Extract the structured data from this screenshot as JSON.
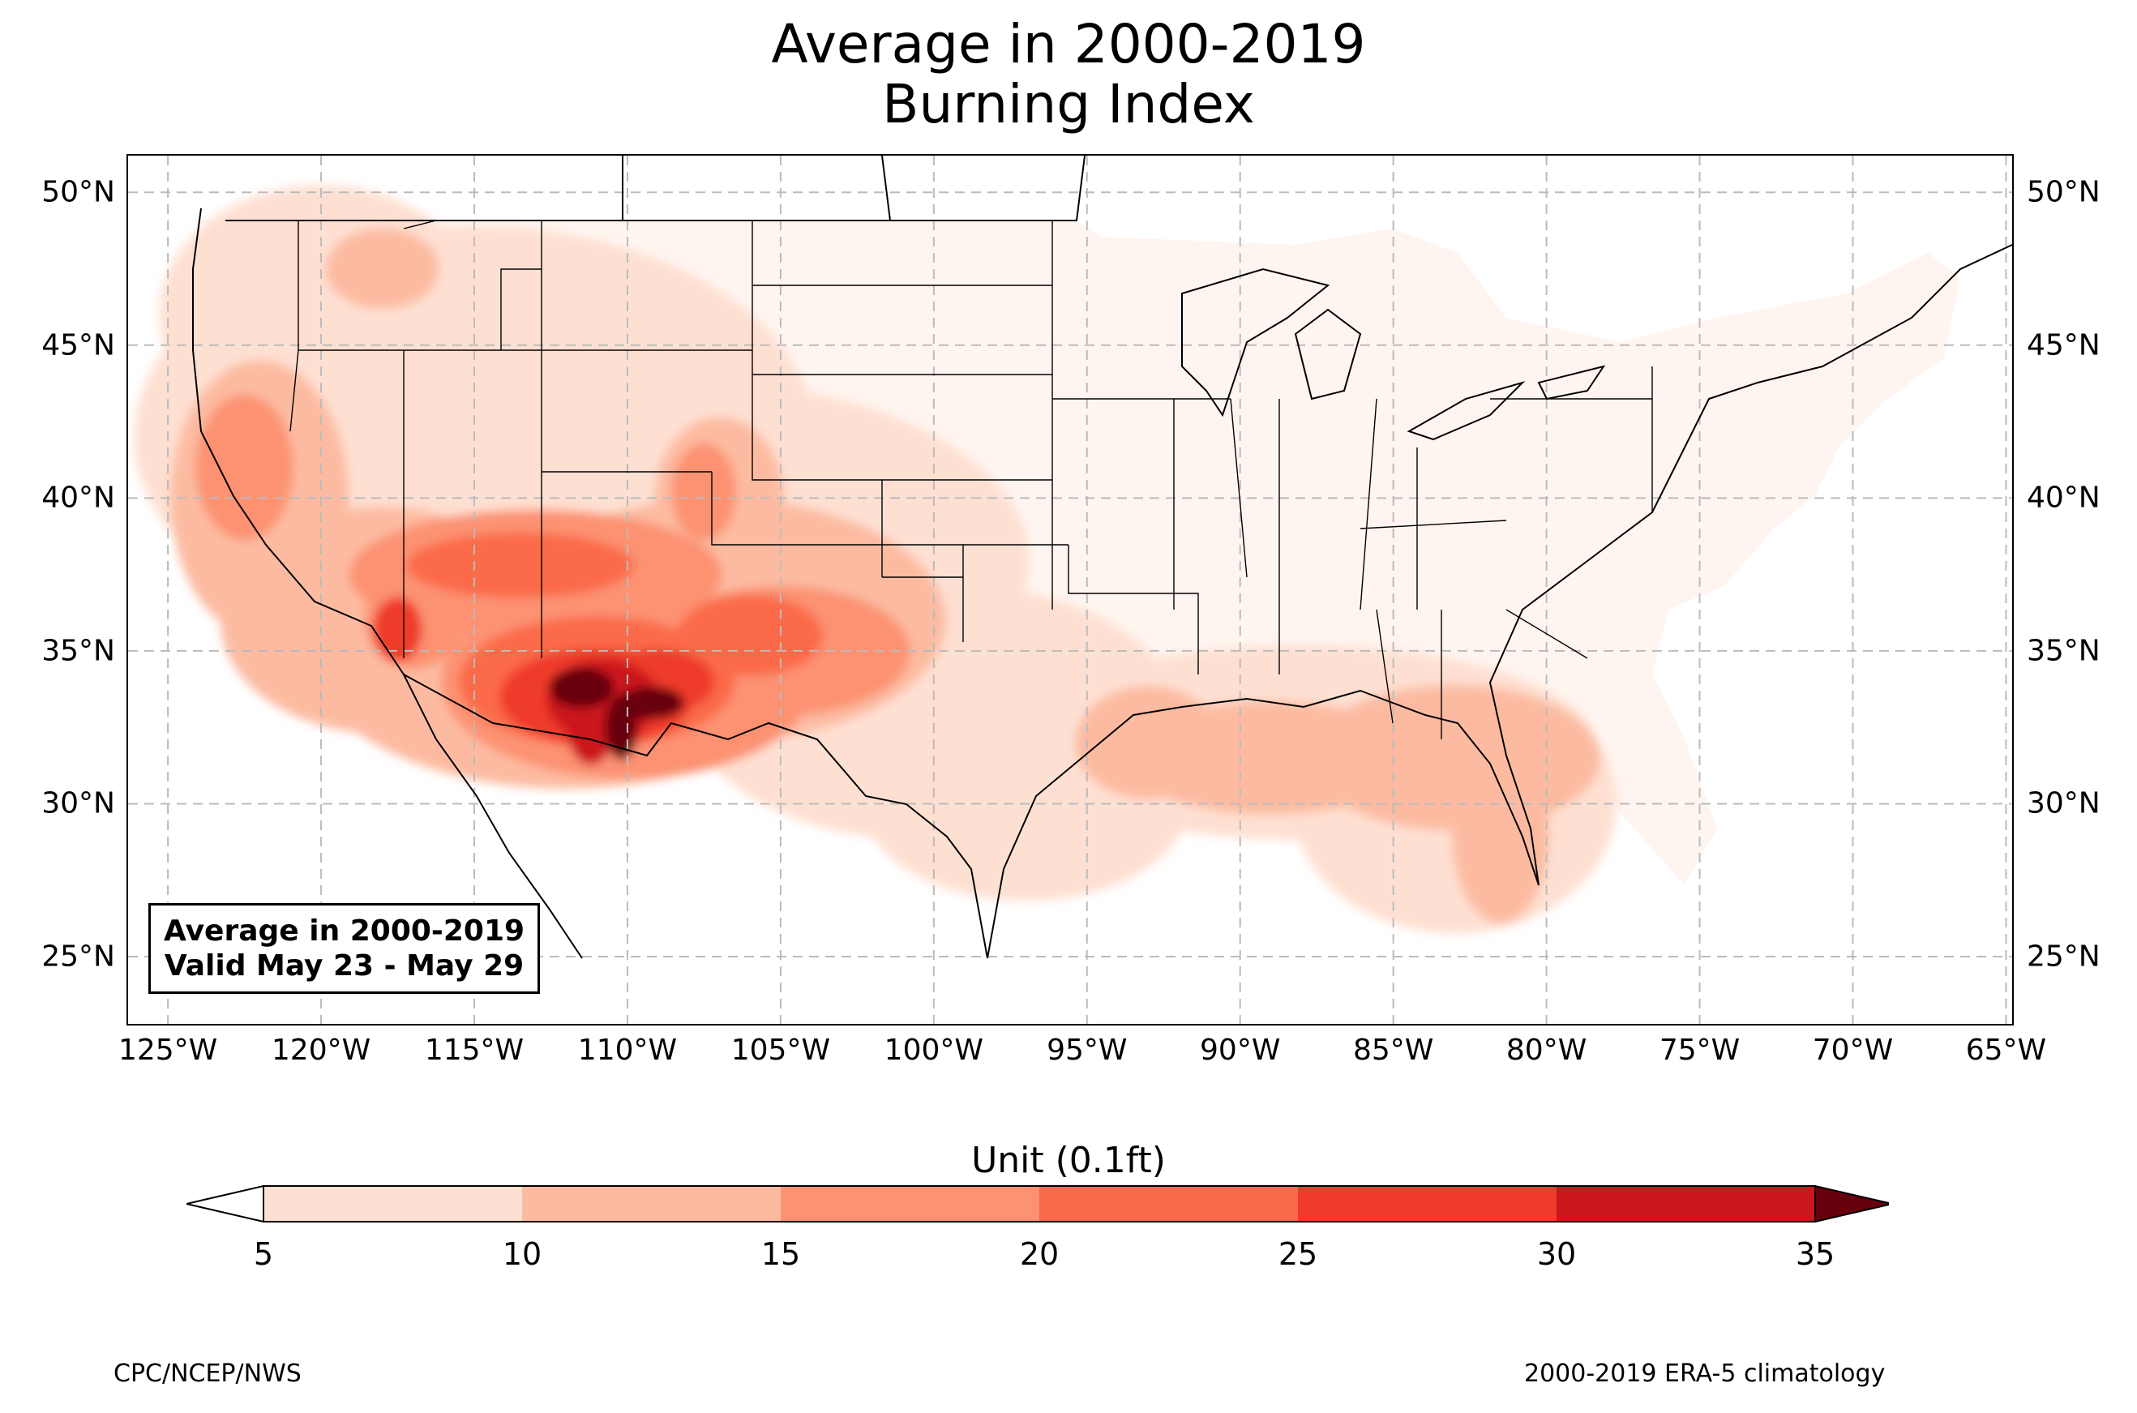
{
  "title": {
    "line1": "Average in 2000-2019",
    "line2": "Burning Index"
  },
  "map": {
    "lat_labels": [
      "50°N",
      "45°N",
      "40°N",
      "35°N",
      "30°N",
      "25°N"
    ],
    "lon_labels": [
      "125°W",
      "120°W",
      "115°W",
      "110°W",
      "105°W",
      "100°W",
      "95°W",
      "90°W",
      "85°W",
      "80°W",
      "75°W",
      "70°W",
      "65°W"
    ],
    "extent": {
      "lon_min": -126.3,
      "lon_max": -64.8,
      "lat_min": 22.8,
      "lat_max": 51.2
    },
    "lat_values": [
      50,
      45,
      40,
      35,
      30,
      25
    ],
    "lon_values": [
      -125,
      -120,
      -115,
      -110,
      -105,
      -100,
      -95,
      -90,
      -85,
      -80,
      -75,
      -70,
      -65
    ],
    "info_box": {
      "line1": "Average in 2000-2019",
      "line2": "Valid May 23 - May 29"
    }
  },
  "colorbar": {
    "title": "Unit (0.1ft)",
    "ticks": [
      "5",
      "10",
      "15",
      "20",
      "25",
      "30",
      "35"
    ],
    "colors": [
      "#fee0d2",
      "#fcbba1",
      "#fc9272",
      "#fb6a4a",
      "#ef3b2c",
      "#cb181d",
      "#a50f15",
      "#67000d"
    ],
    "under_color": "#ffffff",
    "over_color": "#67000d"
  },
  "footer": {
    "left": "CPC/NCEP/NWS",
    "right": "2000-2019 ERA-5 climatology"
  }
}
